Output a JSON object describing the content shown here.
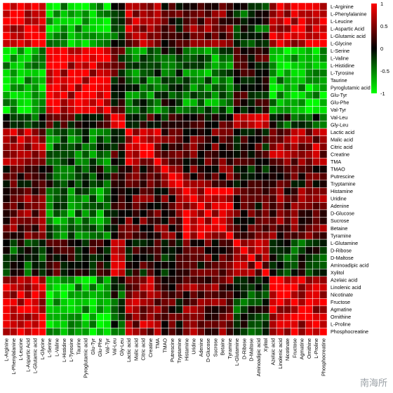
{
  "chart_data": {
    "type": "heatmap",
    "title": "",
    "xlabel": "",
    "ylabel": "",
    "variables": [
      "L-Arginine",
      "L-Phenylalanine",
      "L-Leucine",
      "L-Aspartic Acid",
      "L-Glutamic acid",
      "L-Glycine",
      "L-Serine",
      "L-Valine",
      "L-Histidine",
      "L-Tyrosine",
      "Taurine",
      "Pyroglutamic acid",
      "Glu-Tyr",
      "Glu-Phe",
      "Val-Tyr",
      "Val-Leu",
      "Gly-Leu",
      "Lactic acid",
      "Malic acid",
      "Citric acid",
      "Creatine",
      "TMA",
      "TMAO",
      "Putrescine",
      "Tryptamine",
      "Histamine",
      "Uridine",
      "Adenine",
      "D-Glucose",
      "Sucrose",
      "Betaine",
      "Tyramine",
      "L-Glutamine",
      "D-Ribose",
      "D-Maltose",
      "Aminoadipic acid",
      "Xylitol",
      "Azelaic acid",
      "Linolenic acid",
      "Nicotinate",
      "Fructose",
      "Agmatine",
      "Ornithine",
      "L-Proline",
      "Phosphocreatine"
    ],
    "clusters": [
      0,
      0,
      0,
      0,
      0,
      0,
      1,
      1,
      1,
      1,
      1,
      1,
      1,
      1,
      1,
      2,
      2,
      3,
      3,
      3,
      3,
      3,
      4,
      4,
      4,
      5,
      5,
      5,
      5,
      5,
      5,
      5,
      2,
      2,
      2,
      2,
      2,
      0,
      0,
      0,
      0,
      0,
      0,
      0,
      0
    ],
    "colorbar": {
      "min": -1,
      "max": 1,
      "ticks": [
        1,
        0.5,
        0,
        -0.5,
        -1
      ]
    },
    "colors": {
      "positive": "#ff0000",
      "zero": "#000000",
      "negative": "#00ff00",
      "grid": "#ffffff"
    }
  },
  "watermark": "南海所"
}
